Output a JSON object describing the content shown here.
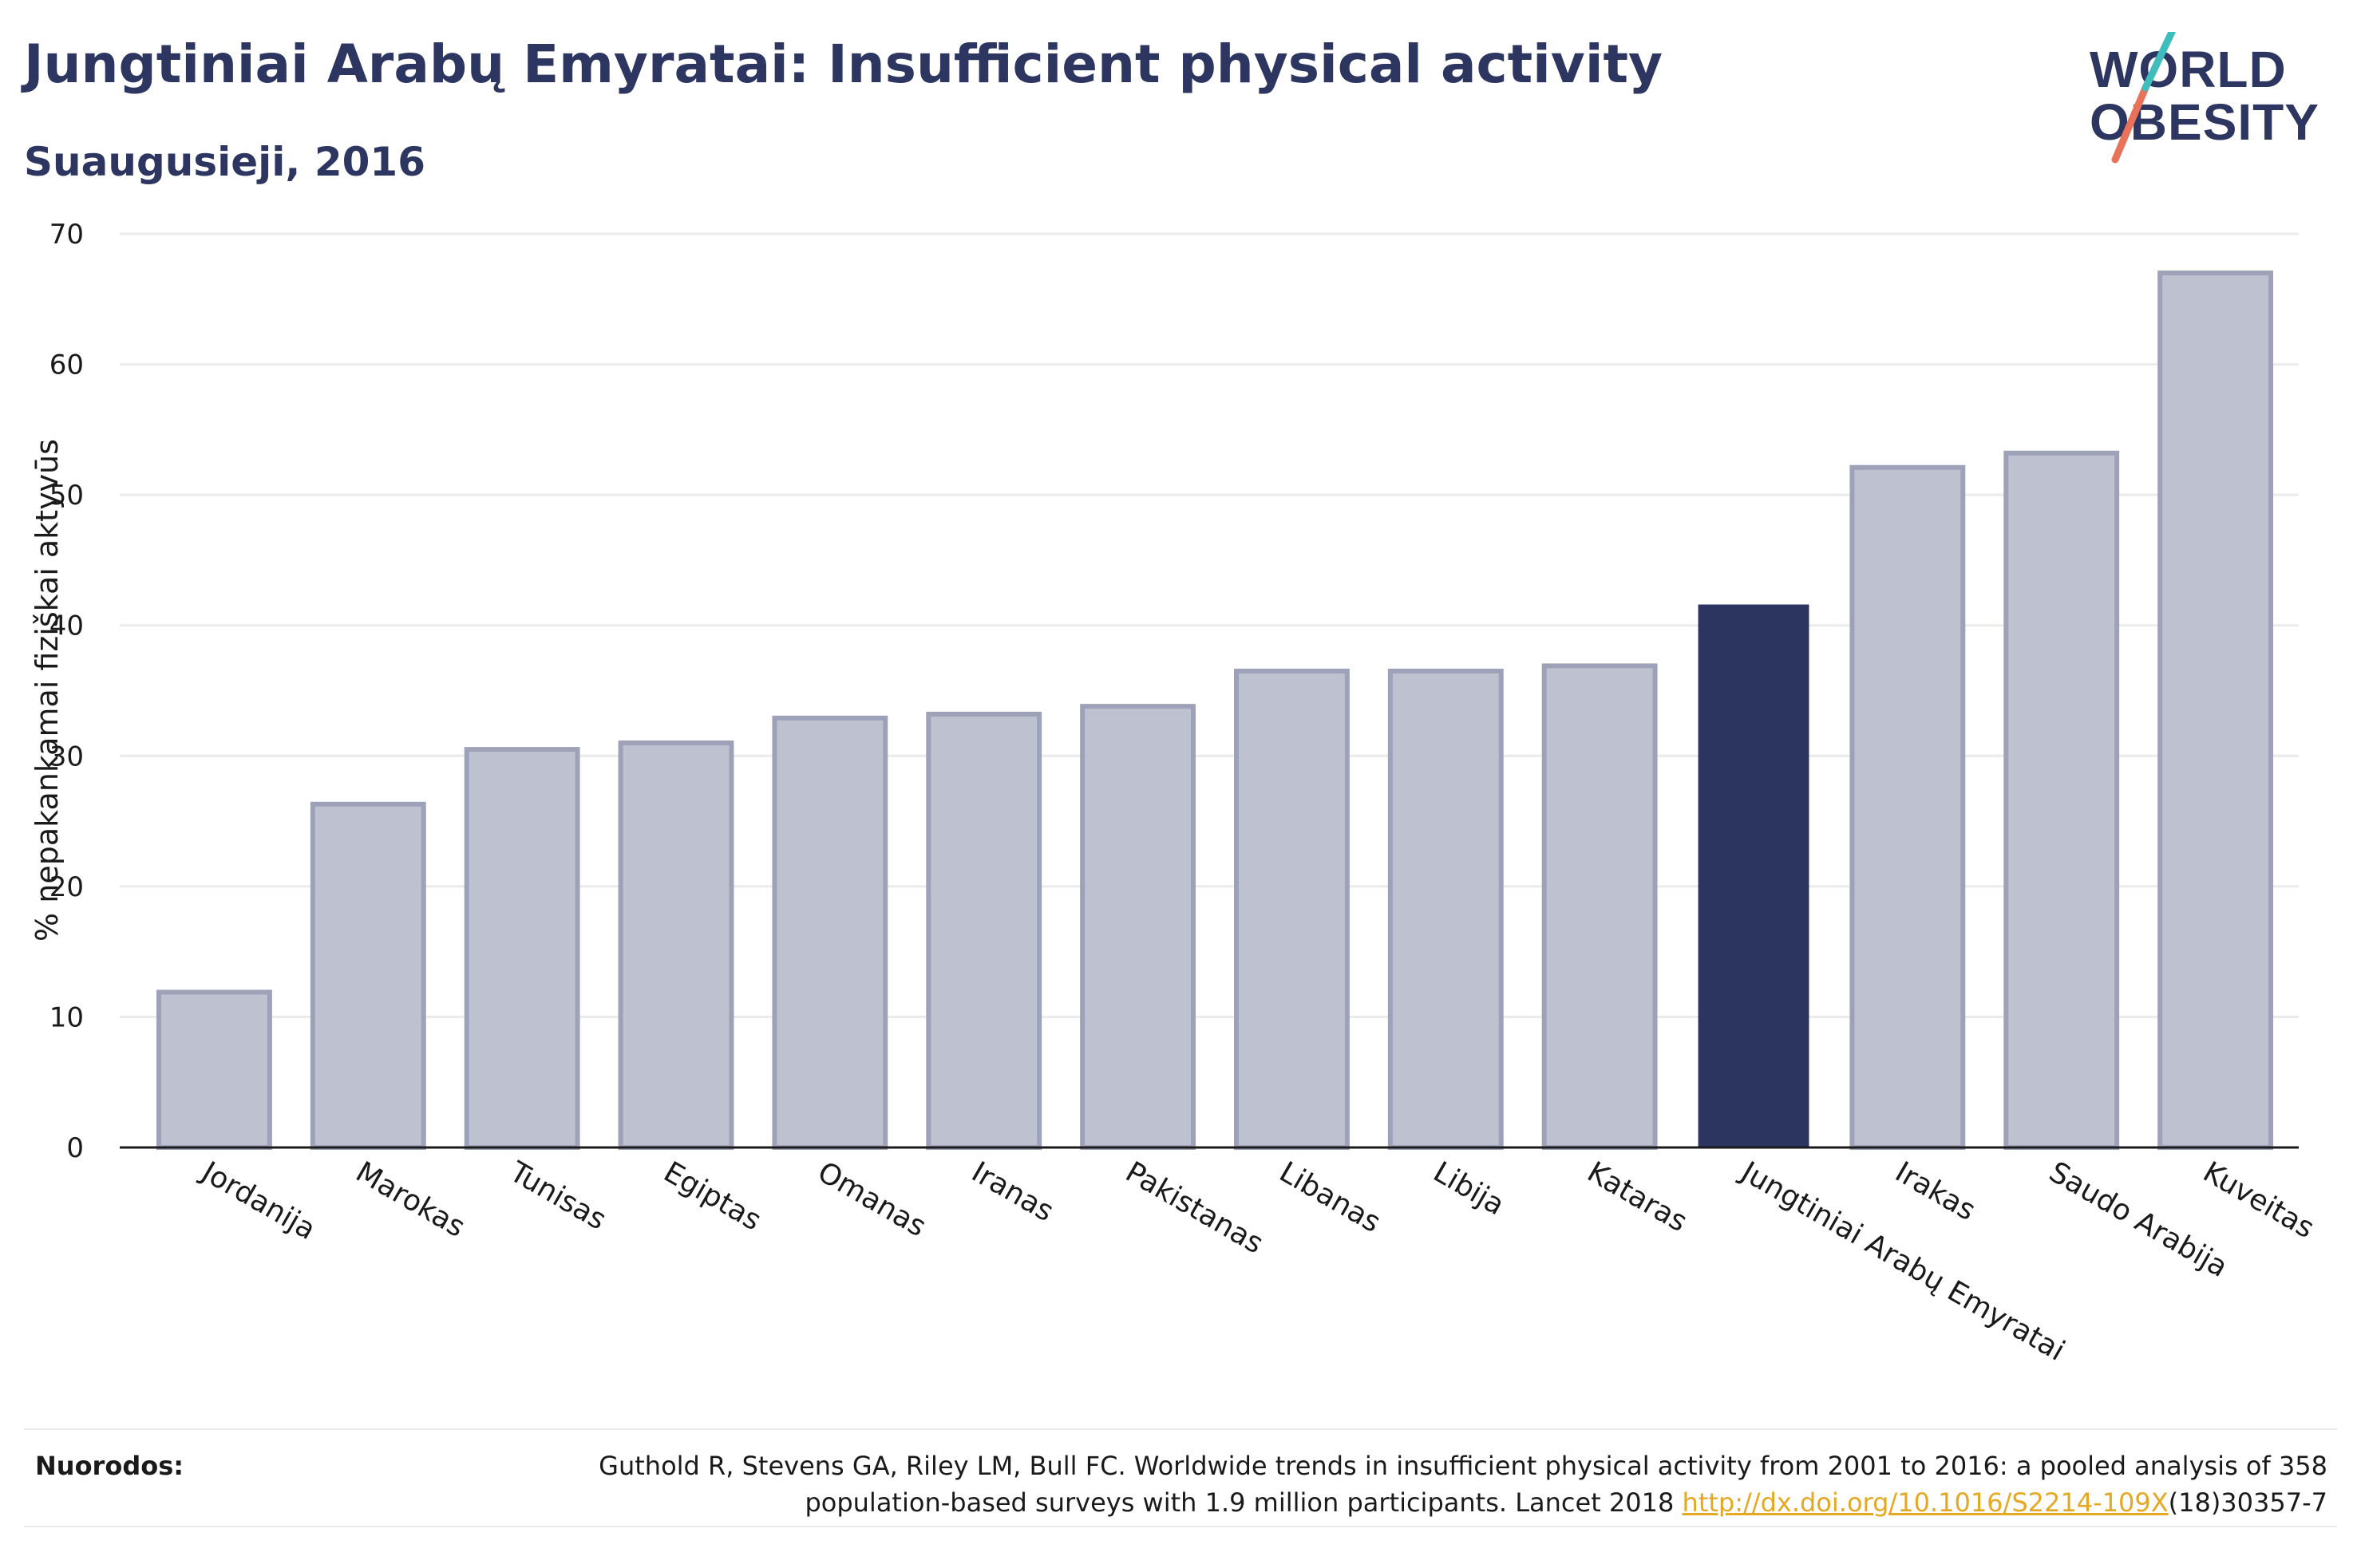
{
  "title": "Jungtiniai Arabų Emyratai: Insufficient physical activity",
  "subtitle": "Suaugusieji, 2016",
  "logo": {
    "line1": "WORLD",
    "line2": "OBESITY"
  },
  "colors": {
    "bar": "#bec1cf",
    "bar_border": "#9ea2b9",
    "highlight": "#2b3560",
    "grid": "#ebebeb",
    "title": "#2d3561",
    "link": "#e5a823",
    "logo_teal": "#3fbdbd",
    "logo_red": "#e8735a"
  },
  "chart_data": {
    "type": "bar",
    "categories": [
      "Jordanija",
      "Marokas",
      "Tunisas",
      "Egiptas",
      "Omanas",
      "Iranas",
      "Pakistanas",
      "Libanas",
      "Libija",
      "Kataras",
      "Jungtiniai Arabų Emyratai",
      "Irakas",
      "Saudo Arabija",
      "Kuveitas"
    ],
    "values": [
      11.9,
      26.3,
      30.5,
      31.0,
      32.9,
      33.2,
      33.8,
      36.5,
      36.5,
      36.9,
      41.6,
      52.1,
      53.2,
      67.0
    ],
    "highlight": "Jungtiniai Arabų Emyratai",
    "ylabel": "% nepakankamai fiziškai aktyvūs",
    "xlabel": "",
    "ylim": [
      0,
      70
    ],
    "yticks": [
      0,
      10,
      20,
      30,
      40,
      50,
      60,
      70
    ],
    "grid": true
  },
  "footer": {
    "label": "Nuorodos:",
    "line1": "Guthold R, Stevens GA, Riley LM, Bull FC. Worldwide trends in insufficient physical activity from 2001 to 2016: a pooled analysis of 358",
    "line2_pre": "population-based surveys with 1.9 million participants. Lancet 2018 ",
    "link": "http://dx.doi.org/10.1016/S2214-109X",
    "line2_post": "(18)30357-7"
  }
}
